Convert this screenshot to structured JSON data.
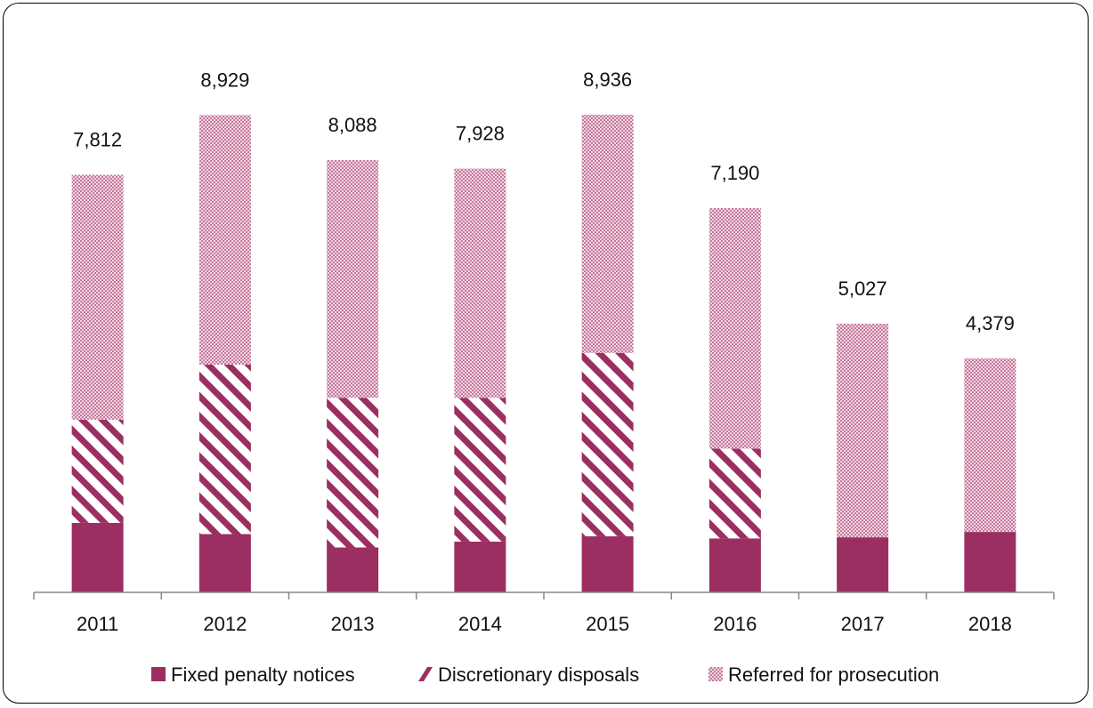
{
  "chart_data": {
    "type": "bar",
    "stacked": true,
    "categories": [
      "2011",
      "2012",
      "2013",
      "2014",
      "2015",
      "2016",
      "2017",
      "2018"
    ],
    "series": [
      {
        "name": "Fixed penalty notices",
        "values": [
          1300,
          1090,
          840,
          950,
          1050,
          1010,
          1030,
          1130
        ],
        "color": "#9b2f61",
        "pattern": "solid"
      },
      {
        "name": "Discretionary disposals",
        "values": [
          1930,
          3170,
          2800,
          2690,
          3430,
          1680,
          0,
          0
        ],
        "color": "#9b2f61",
        "pattern": "diagonal-stripes"
      },
      {
        "name": "Referred for prosecution",
        "values": [
          4582,
          4669,
          4448,
          4288,
          4456,
          4500,
          3997,
          3249
        ],
        "color": "#9b2f61",
        "pattern": "checker"
      }
    ],
    "totals": [
      "7,812",
      "8,929",
      "8,088",
      "7,928",
      "8,936",
      "7,190",
      "5,027",
      "4,379"
    ],
    "total_values": [
      7812,
      8929,
      8088,
      7928,
      8936,
      7190,
      5027,
      4379
    ],
    "ylim": [
      0,
      10500
    ],
    "grid": false,
    "legend_position": "bottom",
    "title": "",
    "xlabel": "",
    "ylabel": ""
  }
}
